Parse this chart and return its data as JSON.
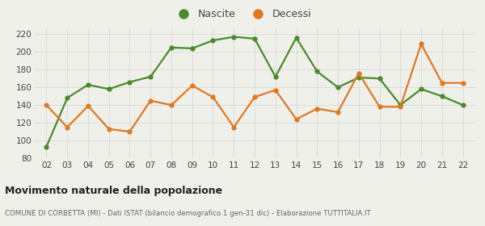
{
  "years": [
    2,
    3,
    4,
    5,
    6,
    7,
    8,
    9,
    10,
    11,
    12,
    13,
    14,
    15,
    16,
    17,
    18,
    19,
    20,
    21,
    22
  ],
  "nascite": [
    93,
    148,
    163,
    158,
    166,
    172,
    205,
    204,
    213,
    217,
    215,
    172,
    216,
    178,
    160,
    171,
    170,
    140,
    158,
    150,
    140
  ],
  "decessi": [
    140,
    115,
    139,
    113,
    110,
    145,
    140,
    162,
    149,
    115,
    149,
    157,
    124,
    136,
    132,
    176,
    138,
    138,
    209,
    165,
    165
  ],
  "nascite_color": "#4a8a2a",
  "decessi_color": "#e07820",
  "bg_color": "#f0f0eb",
  "grid_color": "#d8d8d8",
  "ylim": [
    80,
    228
  ],
  "yticks": [
    80,
    100,
    120,
    140,
    160,
    180,
    200,
    220
  ],
  "title": "Movimento naturale della popolazione",
  "subtitle": "COMUNE DI CORBETTA (MI) - Dati ISTAT (bilancio demografico 1 gen-31 dic) - Elaborazione TUTTITALIA.IT",
  "legend_nascite": "Nascite",
  "legend_decessi": "Decessi",
  "marker_size": 4.5,
  "line_width": 1.6
}
